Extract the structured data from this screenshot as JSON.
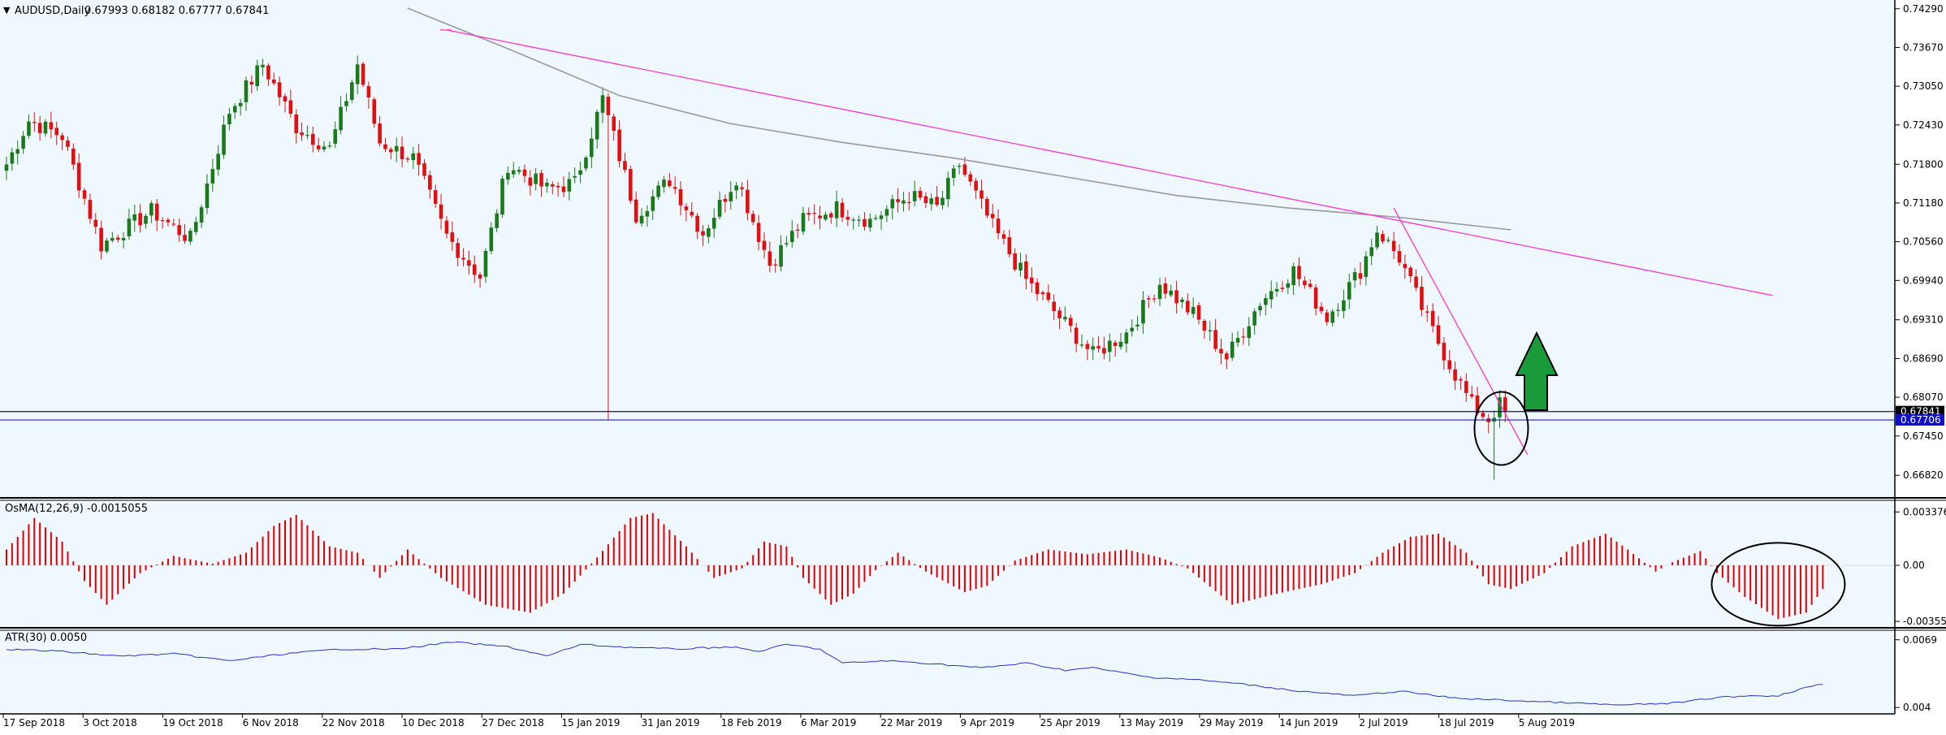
{
  "main_header": {
    "arrow_glyph": "▼",
    "symbol": "AUDUSD,Daily",
    "ohlc": "0.67993 0.68182 0.67777 0.67841"
  },
  "osma_header": "OsMA(12,26,9) -0.0015055",
  "atr_header": "ATR(30) 0.0050",
  "colors": {
    "background": "#f0f8ff",
    "up_candle": "#1a7a1a",
    "down_candle": "#e01010",
    "trendline": "#ff33cc",
    "ma": "#999999",
    "hline": "#1a1a8c",
    "atr_line": "#2233cc",
    "arrow": "#1a9a3a"
  },
  "annotations": {
    "up_arrow_icon": "green-up-arrow",
    "circle_count": 2
  },
  "chart_data": [
    {
      "type": "candlestick",
      "title": "AUDUSD,Daily",
      "price_axis_ticks": [
        "0.74290",
        "0.73670",
        "0.73050",
        "0.72430",
        "0.71800",
        "0.71180",
        "0.70560",
        "0.69940",
        "0.69310",
        "0.68690",
        "0.68070",
        "0.67450",
        "0.66820"
      ],
      "price_tags": [
        {
          "label": "0.67841",
          "value": 0.67841,
          "style": "black"
        },
        {
          "label": "0.67706",
          "value": 0.67706,
          "style": "blue"
        }
      ],
      "ylim": [
        0.6655,
        0.743
      ],
      "x_labels": [
        "17 Sep 2018",
        "3 Oct 2018",
        "19 Oct 2018",
        "6 Nov 2018",
        "22 Nov 2018",
        "10 Dec 2018",
        "27 Dec 2018",
        "15 Jan 2019",
        "31 Jan 2019",
        "18 Feb 2019",
        "6 Mar 2019",
        "22 Mar 2019",
        "9 Apr 2019",
        "25 Apr 2019",
        "13 May 2019",
        "29 May 2019",
        "14 Jun 2019",
        "2 Jul 2019",
        "18 Jul 2019",
        "5 Aug 2019"
      ],
      "close_anchors": [
        {
          "bar": 0,
          "close": 0.718
        },
        {
          "bar": 4,
          "close": 0.725
        },
        {
          "bar": 10,
          "close": 0.7225
        },
        {
          "bar": 17,
          "close": 0.705
        },
        {
          "bar": 26,
          "close": 0.7105
        },
        {
          "bar": 33,
          "close": 0.706
        },
        {
          "bar": 40,
          "close": 0.7265
        },
        {
          "bar": 46,
          "close": 0.734
        },
        {
          "bar": 52,
          "close": 0.724
        },
        {
          "bar": 58,
          "close": 0.7205
        },
        {
          "bar": 63,
          "close": 0.734
        },
        {
          "bar": 67,
          "close": 0.7215
        },
        {
          "bar": 73,
          "close": 0.719
        },
        {
          "bar": 79,
          "close": 0.7065
        },
        {
          "bar": 85,
          "close": 0.7
        },
        {
          "bar": 90,
          "close": 0.718
        },
        {
          "bar": 97,
          "close": 0.714
        },
        {
          "bar": 102,
          "close": 0.715
        },
        {
          "bar": 107,
          "close": 0.7285
        },
        {
          "bar": 113,
          "close": 0.71
        },
        {
          "bar": 119,
          "close": 0.7155
        },
        {
          "bar": 125,
          "close": 0.707
        },
        {
          "bar": 131,
          "close": 0.716
        },
        {
          "bar": 137,
          "close": 0.702
        },
        {
          "bar": 143,
          "close": 0.709
        },
        {
          "bar": 149,
          "close": 0.711
        },
        {
          "bar": 155,
          "close": 0.709
        },
        {
          "bar": 162,
          "close": 0.713
        },
        {
          "bar": 167,
          "close": 0.711
        },
        {
          "bar": 171,
          "close": 0.718
        },
        {
          "bar": 177,
          "close": 0.708
        },
        {
          "bar": 183,
          "close": 0.6995
        },
        {
          "bar": 189,
          "close": 0.6935
        },
        {
          "bar": 195,
          "close": 0.6875
        },
        {
          "bar": 201,
          "close": 0.691
        },
        {
          "bar": 207,
          "close": 0.699
        },
        {
          "bar": 213,
          "close": 0.694
        },
        {
          "bar": 219,
          "close": 0.687
        },
        {
          "bar": 225,
          "close": 0.696
        },
        {
          "bar": 231,
          "close": 0.701
        },
        {
          "bar": 237,
          "close": 0.6935
        },
        {
          "bar": 243,
          "close": 0.701
        },
        {
          "bar": 246,
          "close": 0.7075
        },
        {
          "bar": 250,
          "close": 0.703
        },
        {
          "bar": 255,
          "close": 0.693
        },
        {
          "bar": 259,
          "close": 0.686
        },
        {
          "bar": 263,
          "close": 0.6795
        },
        {
          "bar": 266,
          "close": 0.6772
        },
        {
          "bar": 268,
          "close": 0.6795
        },
        {
          "bar": 269,
          "close": 0.6784
        }
      ],
      "flash_crash_low": {
        "bar": 108,
        "low": 0.677
      },
      "recent_low": {
        "bar": 267,
        "low": 0.6675
      },
      "moving_average": [
        {
          "bar": 72,
          "value": 0.743
        },
        {
          "bar": 90,
          "value": 0.7365
        },
        {
          "bar": 110,
          "value": 0.729
        },
        {
          "bar": 130,
          "value": 0.7245
        },
        {
          "bar": 150,
          "value": 0.7215
        },
        {
          "bar": 170,
          "value": 0.719
        },
        {
          "bar": 190,
          "value": 0.716
        },
        {
          "bar": 210,
          "value": 0.713
        },
        {
          "bar": 230,
          "value": 0.711
        },
        {
          "bar": 250,
          "value": 0.7095
        },
        {
          "bar": 270,
          "value": 0.7075
        }
      ],
      "trendlines": [
        {
          "from": {
            "bar": 79,
            "value": 0.7395
          },
          "to": {
            "bar": 317,
            "value": 0.697
          }
        },
        {
          "from": {
            "bar": 249,
            "value": 0.711
          },
          "to": {
            "bar": 273,
            "value": 0.6715
          }
        }
      ],
      "horizontal_lines": [
        0.67841,
        0.67706
      ],
      "circle": {
        "bar": 268,
        "value": 0.6757
      }
    },
    {
      "type": "bar",
      "title": "OsMA(12,26,9) -0.0015055",
      "axis_ticks": [
        "0.0033763",
        "0.00",
        "-0.0035509"
      ],
      "ylim": [
        -0.0037,
        0.0035
      ],
      "anchors": [
        {
          "bar": 0,
          "value": 0.001
        },
        {
          "bar": 5,
          "value": 0.003
        },
        {
          "bar": 10,
          "value": 0.0015
        },
        {
          "bar": 14,
          "value": -0.001
        },
        {
          "bar": 18,
          "value": -0.0025
        },
        {
          "bar": 24,
          "value": -0.0005
        },
        {
          "bar": 30,
          "value": 0.0006
        },
        {
          "bar": 37,
          "value": 0.0001
        },
        {
          "bar": 43,
          "value": 0.0008
        },
        {
          "bar": 48,
          "value": 0.0025
        },
        {
          "bar": 52,
          "value": 0.0032
        },
        {
          "bar": 58,
          "value": 0.0012
        },
        {
          "bar": 63,
          "value": 0.0008
        },
        {
          "bar": 67,
          "value": -0.0008
        },
        {
          "bar": 72,
          "value": 0.001
        },
        {
          "bar": 78,
          "value": -0.0008
        },
        {
          "bar": 86,
          "value": -0.0025
        },
        {
          "bar": 94,
          "value": -0.003
        },
        {
          "bar": 100,
          "value": -0.0018
        },
        {
          "bar": 106,
          "value": 0.0005
        },
        {
          "bar": 112,
          "value": 0.003
        },
        {
          "bar": 116,
          "value": 0.0033
        },
        {
          "bar": 122,
          "value": 0.0012
        },
        {
          "bar": 127,
          "value": -0.0008
        },
        {
          "bar": 132,
          "value": -0.0002
        },
        {
          "bar": 136,
          "value": 0.0015
        },
        {
          "bar": 140,
          "value": 0.0012
        },
        {
          "bar": 143,
          "value": -0.0008
        },
        {
          "bar": 148,
          "value": -0.0025
        },
        {
          "bar": 152,
          "value": -0.0018
        },
        {
          "bar": 156,
          "value": -0.0003
        },
        {
          "bar": 160,
          "value": 0.0008
        },
        {
          "bar": 165,
          "value": -0.0004
        },
        {
          "bar": 172,
          "value": -0.0017
        },
        {
          "bar": 176,
          "value": -0.0013
        },
        {
          "bar": 181,
          "value": 0.0003
        },
        {
          "bar": 187,
          "value": 0.001
        },
        {
          "bar": 194,
          "value": 0.0007
        },
        {
          "bar": 201,
          "value": 0.001
        },
        {
          "bar": 207,
          "value": 0.0005
        },
        {
          "bar": 212,
          "value": -0.0002
        },
        {
          "bar": 220,
          "value": -0.0025
        },
        {
          "bar": 228,
          "value": -0.0018
        },
        {
          "bar": 236,
          "value": -0.0012
        },
        {
          "bar": 242,
          "value": -0.0005
        },
        {
          "bar": 247,
          "value": 0.0008
        },
        {
          "bar": 252,
          "value": 0.0018
        },
        {
          "bar": 257,
          "value": 0.002
        },
        {
          "bar": 262,
          "value": 0.0008
        },
        {
          "bar": 266,
          "value": -0.0012
        },
        {
          "bar": 270,
          "value": -0.0015
        },
        {
          "bar": 276,
          "value": -0.0005
        },
        {
          "bar": 281,
          "value": 0.0012
        },
        {
          "bar": 287,
          "value": 0.002
        },
        {
          "bar": 291,
          "value": 0.001
        },
        {
          "bar": 296,
          "value": -0.0004
        },
        {
          "bar": 299,
          "value": 0.0002
        },
        {
          "bar": 304,
          "value": 0.0009
        },
        {
          "bar": 307,
          "value": -0.0005
        },
        {
          "bar": 312,
          "value": -0.002
        },
        {
          "bar": 318,
          "value": -0.0034
        },
        {
          "bar": 323,
          "value": -0.003
        },
        {
          "bar": 326,
          "value": -0.0015
        }
      ],
      "circle": {
        "bar": 318,
        "value": -0.0012
      }
    },
    {
      "type": "line",
      "title": "ATR(30) 0.0050",
      "axis_ticks": [
        "0.0069",
        "0.004"
      ],
      "ylim": [
        0.0039,
        0.0071
      ],
      "anchors": [
        {
          "bar": 0,
          "value": 0.0065
        },
        {
          "bar": 10,
          "value": 0.0064
        },
        {
          "bar": 20,
          "value": 0.0062
        },
        {
          "bar": 30,
          "value": 0.0063
        },
        {
          "bar": 40,
          "value": 0.006
        },
        {
          "bar": 50,
          "value": 0.0063
        },
        {
          "bar": 60,
          "value": 0.0065
        },
        {
          "bar": 70,
          "value": 0.0065
        },
        {
          "bar": 80,
          "value": 0.0068
        },
        {
          "bar": 85,
          "value": 0.0067
        },
        {
          "bar": 90,
          "value": 0.0066
        },
        {
          "bar": 97,
          "value": 0.0062
        },
        {
          "bar": 103,
          "value": 0.0067
        },
        {
          "bar": 110,
          "value": 0.0066
        },
        {
          "bar": 120,
          "value": 0.0065
        },
        {
          "bar": 130,
          "value": 0.0066
        },
        {
          "bar": 135,
          "value": 0.0064
        },
        {
          "bar": 140,
          "value": 0.0067
        },
        {
          "bar": 146,
          "value": 0.0065
        },
        {
          "bar": 150,
          "value": 0.0059
        },
        {
          "bar": 158,
          "value": 0.006
        },
        {
          "bar": 165,
          "value": 0.0059
        },
        {
          "bar": 175,
          "value": 0.0057
        },
        {
          "bar": 183,
          "value": 0.0059
        },
        {
          "bar": 190,
          "value": 0.0056
        },
        {
          "bar": 195,
          "value": 0.0057
        },
        {
          "bar": 205,
          "value": 0.0053
        },
        {
          "bar": 213,
          "value": 0.0052
        },
        {
          "bar": 222,
          "value": 0.005
        },
        {
          "bar": 232,
          "value": 0.0047
        },
        {
          "bar": 242,
          "value": 0.0045
        },
        {
          "bar": 250,
          "value": 0.0047
        },
        {
          "bar": 260,
          "value": 0.0044
        },
        {
          "bar": 270,
          "value": 0.0043
        },
        {
          "bar": 280,
          "value": 0.0042
        },
        {
          "bar": 290,
          "value": 0.0041
        },
        {
          "bar": 300,
          "value": 0.0042
        },
        {
          "bar": 306,
          "value": 0.0044
        },
        {
          "bar": 312,
          "value": 0.0045
        },
        {
          "bar": 318,
          "value": 0.0045
        },
        {
          "bar": 322,
          "value": 0.0048
        },
        {
          "bar": 326,
          "value": 0.005
        }
      ]
    }
  ]
}
